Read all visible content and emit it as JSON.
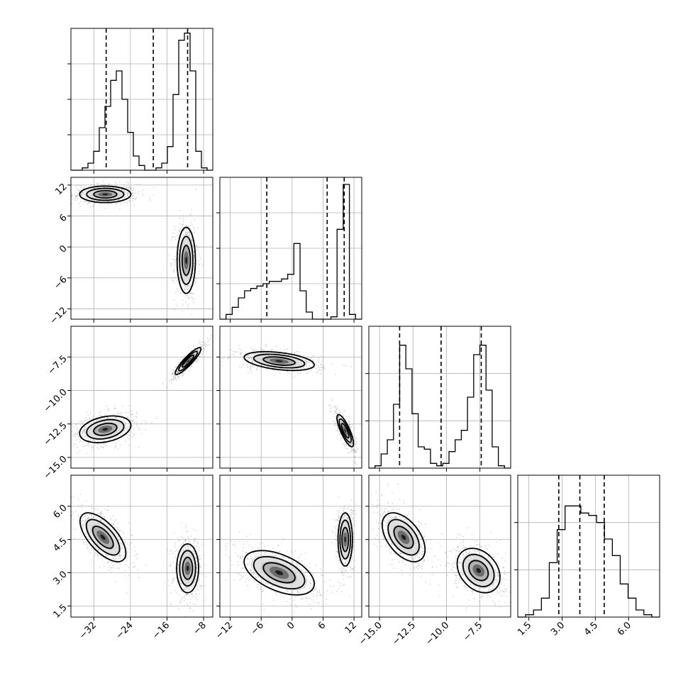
{
  "chart_data": {
    "type": "corner",
    "title": "",
    "parameters": [
      {
        "label": "",
        "ticks": [
          -32,
          -24,
          -16,
          -8
        ],
        "tick_labels": [
          "−32",
          "−24",
          "−16",
          "−8"
        ],
        "range": [
          -37,
          -6
        ]
      },
      {
        "label": "",
        "ticks": [
          -12,
          -6,
          0,
          6,
          12
        ],
        "tick_labels": [
          "−12",
          "−6",
          "0",
          "6",
          "12"
        ],
        "range": [
          -14,
          13.5
        ]
      },
      {
        "label": "",
        "ticks": [
          -15.0,
          -12.5,
          -10.0,
          -7.5
        ],
        "tick_labels": [
          "−15.0",
          "−12.5",
          "−10.0",
          "−7.5"
        ],
        "range": [
          -15.8,
          -5.2
        ]
      },
      {
        "label": "",
        "ticks": [
          1.5,
          3.0,
          4.5,
          6.0
        ],
        "tick_labels": [
          "1.5",
          "3.0",
          "4.5",
          "6.0"
        ],
        "range": [
          1.0,
          7.4
        ]
      }
    ],
    "quantiles": [
      [
        -29.3,
        -19.0,
        -11.5
      ],
      [
        -4.9,
        6.8,
        10.1
      ],
      [
        -13.5,
        -10.4,
        -7.4
      ],
      [
        2.85,
        3.8,
        4.9
      ]
    ],
    "histograms": [
      {
        "max": 60,
        "yticks": [
          15,
          30,
          45
        ],
        "counts": [
          0,
          0,
          1,
          3,
          8,
          18,
          27,
          38,
          42,
          30,
          16,
          6,
          2,
          0,
          0,
          1,
          3,
          10,
          32,
          55,
          58,
          42,
          8,
          1,
          0
        ]
      },
      {
        "max": 60,
        "yticks": [
          15,
          30,
          45
        ],
        "counts": [
          0,
          2,
          5,
          9,
          12,
          13,
          14,
          15,
          16,
          16,
          17,
          19,
          32,
          12,
          3,
          0,
          0,
          0,
          1,
          38,
          57,
          2,
          0
        ]
      },
      {
        "max": 60,
        "yticks": [
          20,
          40
        ],
        "counts": [
          0,
          1,
          6,
          12,
          27,
          52,
          42,
          23,
          9,
          8,
          2,
          1,
          2,
          7,
          12,
          16,
          30,
          48,
          52,
          33,
          9,
          1,
          0
        ]
      },
      {
        "max": 60,
        "yticks": [
          20,
          40
        ],
        "counts": [
          0,
          1,
          3,
          8,
          23,
          37,
          47,
          47,
          44,
          43,
          40,
          33,
          26,
          14,
          8,
          3,
          1,
          0
        ]
      }
    ],
    "modes": [
      [
        {
          "mean": [
            -29.5,
            10.2
          ],
          "sd": [
            2.8,
            0.8
          ],
          "rho": 0.0,
          "w": 0.5
        },
        {
          "mean": [
            -11.8,
            -2.6
          ],
          "sd": [
            1.0,
            3.2
          ],
          "rho": 0.0,
          "w": 0.5
        }
      ],
      [
        {
          "mean": [
            -29.5,
            -12.9
          ],
          "sd": [
            2.8,
            0.5
          ],
          "rho": 0.3,
          "w": 0.5
        },
        {
          "mean": [
            -11.4,
            -7.8
          ],
          "sd": [
            1.4,
            0.5
          ],
          "rho": 0.9,
          "w": 0.5
        }
      ],
      [
        {
          "mean": [
            -30.0,
            4.6
          ],
          "sd": [
            2.5,
            0.55
          ],
          "rho": -0.65,
          "w": 0.5
        },
        {
          "mean": [
            -11.5,
            3.2
          ],
          "sd": [
            1.2,
            0.55
          ],
          "rho": 0.0,
          "w": 0.5
        }
      ],
      [
        {
          "mean": [
            -2.5,
            -7.8
          ],
          "sd": [
            3.4,
            0.35
          ],
          "rho": -0.4,
          "w": 0.5
        },
        {
          "mean": [
            10.3,
            -13.0
          ],
          "sd": [
            0.8,
            0.6
          ],
          "rho": -0.8,
          "w": 0.5
        }
      ],
      [
        {
          "mean": [
            -2.5,
            3.0
          ],
          "sd": [
            3.4,
            0.5
          ],
          "rho": -0.5,
          "w": 0.5
        },
        {
          "mean": [
            10.3,
            4.5
          ],
          "sd": [
            0.7,
            0.6
          ],
          "rho": 0.0,
          "w": 0.5
        }
      ],
      [
        {
          "mean": [
            -13.2,
            4.6
          ],
          "sd": [
            0.8,
            0.55
          ],
          "rho": -0.5,
          "w": 0.5
        },
        {
          "mean": [
            -7.6,
            3.1
          ],
          "sd": [
            0.8,
            0.5
          ],
          "rho": -0.3,
          "w": 0.5
        }
      ]
    ],
    "grid": true,
    "legend": "none"
  }
}
